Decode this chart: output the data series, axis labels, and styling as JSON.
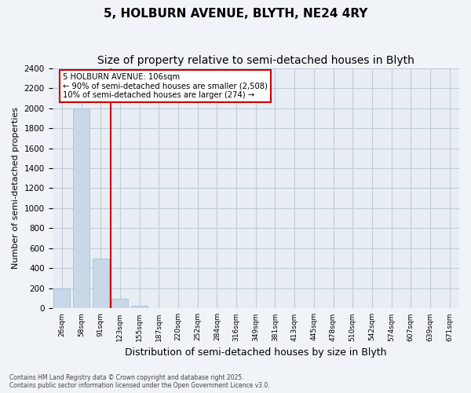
{
  "title": "5, HOLBURN AVENUE, BLYTH, NE24 4RY",
  "subtitle": "Size of property relative to semi-detached houses in Blyth",
  "xlabel": "Distribution of semi-detached houses by size in Blyth",
  "ylabel": "Number of semi-detached properties",
  "footer_line1": "Contains HM Land Registry data © Crown copyright and database right 2025.",
  "footer_line2": "Contains public sector information licensed under the Open Government Licence v3.0.",
  "bins": [
    "26sqm",
    "58sqm",
    "91sqm",
    "123sqm",
    "155sqm",
    "187sqm",
    "220sqm",
    "252sqm",
    "284sqm",
    "316sqm",
    "349sqm",
    "381sqm",
    "413sqm",
    "445sqm",
    "478sqm",
    "510sqm",
    "542sqm",
    "574sqm",
    "607sqm",
    "639sqm",
    "671sqm"
  ],
  "bar_values": [
    200,
    2000,
    500,
    100,
    30,
    0,
    0,
    0,
    0,
    0,
    0,
    0,
    0,
    0,
    0,
    0,
    0,
    0,
    0,
    0,
    0
  ],
  "bar_color": "#c8d8e8",
  "bar_edge_color": "#a0b8d0",
  "ylim": [
    0,
    2400
  ],
  "yticks": [
    0,
    200,
    400,
    600,
    800,
    1000,
    1200,
    1400,
    1600,
    1800,
    2000,
    2200,
    2400
  ],
  "red_line_x": 2.5,
  "annotation_text_line1": "5 HOLBURN AVENUE: 106sqm",
  "annotation_text_line2": "← 90% of semi-detached houses are smaller (2,508)",
  "annotation_text_line3": "10% of semi-detached houses are larger (274) →",
  "red_color": "#cc0000",
  "grid_color": "#c0ccd8",
  "bg_color": "#e8eef4",
  "fig_bg_color": "#f0f4f8",
  "title_fontsize": 11,
  "subtitle_fontsize": 10
}
